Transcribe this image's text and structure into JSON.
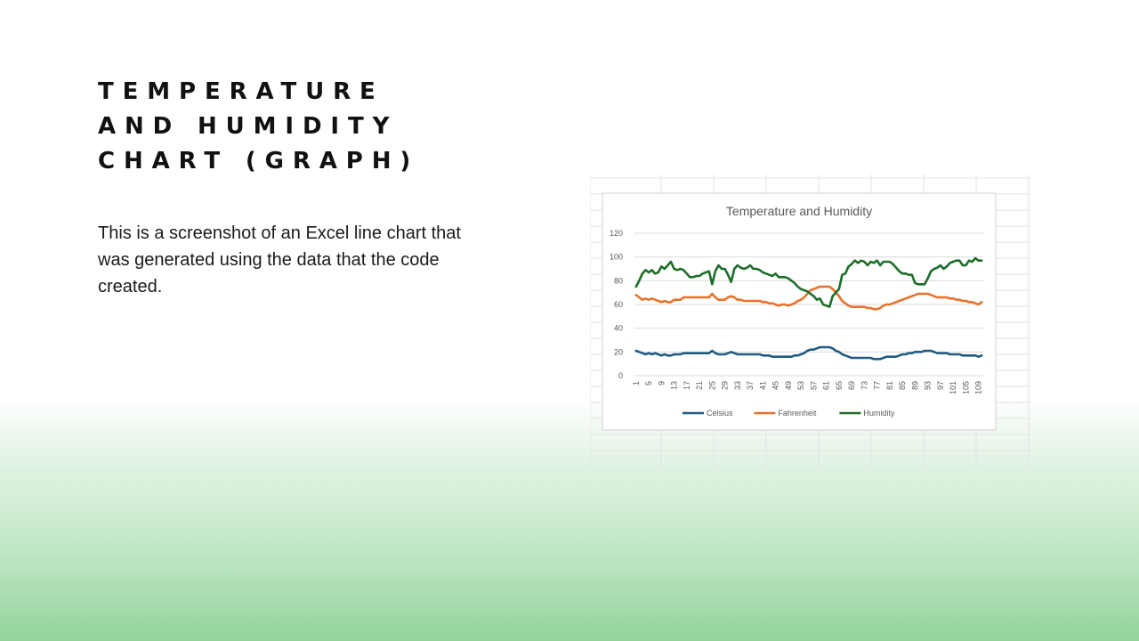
{
  "slide": {
    "title": "TEMPERATURE AND HUMIDITY CHART (GRAPH)",
    "body": "This is a screenshot of an Excel line chart that was generated using the data that the code created."
  },
  "colors": {
    "celsius": "#1f5c80",
    "fahrenheit": "#e8722c",
    "humidity": "#1e6e2a",
    "gridline": "#d9d9d9",
    "sheet_grid": "#e3e3e3"
  },
  "chart_data": {
    "type": "line",
    "title": "Temperature and Humidity",
    "xlabel": "",
    "ylabel": "",
    "ylim": [
      0,
      120
    ],
    "yticks": [
      0,
      20,
      40,
      60,
      80,
      100,
      120
    ],
    "grid": true,
    "legend": "bottom",
    "x_count": 110,
    "x_tick_labels": [
      "1",
      "5",
      "9",
      "13",
      "17",
      "21",
      "25",
      "29",
      "33",
      "37",
      "41",
      "45",
      "49",
      "53",
      "57",
      "61",
      "65",
      "69",
      "73",
      "77",
      "81",
      "85",
      "89",
      "93",
      "97",
      "101",
      "105",
      "109"
    ],
    "series": [
      {
        "name": "Celsius",
        "color_key": "celsius",
        "values": [
          21,
          20,
          19,
          18,
          19,
          18,
          19,
          18,
          17,
          18,
          17,
          17,
          18,
          18,
          18,
          19,
          19,
          19,
          19,
          19,
          19,
          19,
          19,
          19,
          21,
          19,
          18,
          18,
          18,
          19,
          20,
          19,
          18,
          18,
          18,
          18,
          18,
          18,
          18,
          18,
          17,
          17,
          17,
          16,
          16,
          16,
          16,
          16,
          16,
          16,
          17,
          17,
          18,
          19,
          21,
          22,
          22,
          23,
          24,
          24,
          24,
          24,
          23,
          21,
          20,
          18,
          17,
          16,
          15,
          15,
          15,
          15,
          15,
          15,
          15,
          14,
          14,
          14,
          15,
          16,
          16,
          16,
          16,
          17,
          18,
          18,
          19,
          19,
          20,
          20,
          20,
          21,
          21,
          21,
          20,
          19,
          19,
          19,
          19,
          18,
          18,
          18,
          18,
          17,
          17,
          17,
          17,
          17,
          16,
          17
        ]
      },
      {
        "name": "Fahrenheit",
        "color_key": "fahrenheit",
        "values": [
          68,
          66,
          64,
          65,
          64,
          65,
          64,
          63,
          62,
          63,
          62,
          62,
          64,
          64,
          64,
          66,
          66,
          66,
          66,
          66,
          66,
          66,
          66,
          66,
          69,
          66,
          64,
          64,
          64,
          66,
          67,
          66,
          64,
          64,
          63,
          63,
          63,
          63,
          63,
          63,
          62,
          62,
          61,
          61,
          60,
          59,
          60,
          60,
          59,
          60,
          61,
          63,
          64,
          66,
          69,
          72,
          73,
          74,
          75,
          75,
          75,
          75,
          73,
          70,
          67,
          63,
          61,
          59,
          58,
          58,
          58,
          58,
          58,
          57,
          57,
          56,
          56,
          57,
          59,
          60,
          60,
          61,
          62,
          63,
          64,
          65,
          66,
          67,
          68,
          69,
          69,
          69,
          69,
          68,
          67,
          66,
          66,
          66,
          66,
          65,
          65,
          64,
          64,
          63,
          63,
          62,
          62,
          61,
          60,
          62
        ]
      },
      {
        "name": "Humidity",
        "color_key": "humidity",
        "values": [
          75,
          80,
          86,
          89,
          87,
          89,
          86,
          87,
          92,
          90,
          93,
          96,
          90,
          89,
          90,
          89,
          86,
          83,
          83,
          84,
          84,
          86,
          87,
          88,
          77,
          88,
          93,
          90,
          90,
          85,
          79,
          90,
          93,
          91,
          90,
          91,
          93,
          90,
          90,
          89,
          87,
          86,
          85,
          84,
          86,
          83,
          83,
          83,
          82,
          80,
          78,
          75,
          73,
          72,
          71,
          69,
          67,
          64,
          65,
          60,
          59,
          58,
          67,
          70,
          73,
          85,
          86,
          92,
          94,
          97,
          95,
          97,
          96,
          93,
          96,
          95,
          97,
          93,
          96,
          96,
          96,
          94,
          91,
          88,
          86,
          86,
          85,
          85,
          78,
          77,
          77,
          77,
          82,
          88,
          90,
          91,
          93,
          90,
          92,
          95,
          96,
          97,
          97,
          93,
          93,
          97,
          96,
          99,
          97,
          97
        ]
      }
    ]
  }
}
